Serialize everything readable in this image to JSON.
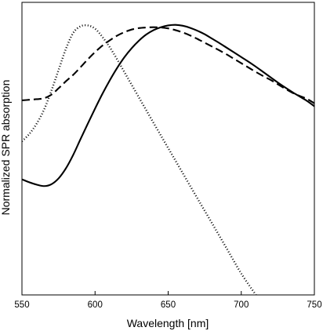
{
  "chart_data": {
    "type": "line",
    "title": "",
    "xlabel": "Wavelength [nm]",
    "ylabel": "Normalized SPR absorption",
    "xlim": [
      550,
      750
    ],
    "ylim": [
      0,
      1.0
    ],
    "x_ticks": [
      550,
      600,
      650,
      700,
      750
    ],
    "y_ticks_shown": false,
    "grid": false,
    "legend": "none",
    "series": [
      {
        "line_style": "solid",
        "color": "#000000",
        "x": [
          550,
          555,
          560,
          565,
          570,
          575,
          580,
          585,
          590,
          595,
          600,
          605,
          610,
          615,
          620,
          625,
          630,
          635,
          640,
          645,
          650,
          655,
          660,
          665,
          670,
          675,
          680,
          685,
          690,
          695,
          700,
          705,
          710,
          715,
          720,
          725,
          730,
          735,
          740,
          745,
          750
        ],
        "y": [
          0.395,
          0.385,
          0.377,
          0.372,
          0.378,
          0.398,
          0.432,
          0.478,
          0.532,
          0.585,
          0.637,
          0.687,
          0.733,
          0.775,
          0.812,
          0.843,
          0.869,
          0.89,
          0.905,
          0.915,
          0.921,
          0.923,
          0.92,
          0.913,
          0.903,
          0.891,
          0.876,
          0.861,
          0.845,
          0.829,
          0.813,
          0.797,
          0.78,
          0.762,
          0.744,
          0.726,
          0.709,
          0.693,
          0.678,
          0.663,
          0.645
        ]
      },
      {
        "line_style": "dashed",
        "color": "#000000",
        "x": [
          550,
          555,
          560,
          565,
          570,
          575,
          580,
          585,
          590,
          595,
          600,
          605,
          610,
          615,
          620,
          625,
          630,
          635,
          640,
          645,
          650,
          655,
          660,
          665,
          670,
          675,
          680,
          685,
          690,
          695,
          700,
          705,
          710,
          715,
          720,
          725,
          730,
          735,
          740,
          745,
          750
        ],
        "y": [
          0.665,
          0.667,
          0.669,
          0.672,
          0.684,
          0.706,
          0.73,
          0.752,
          0.778,
          0.805,
          0.83,
          0.852,
          0.87,
          0.886,
          0.898,
          0.907,
          0.912,
          0.914,
          0.915,
          0.914,
          0.911,
          0.905,
          0.897,
          0.887,
          0.875,
          0.862,
          0.849,
          0.836,
          0.822,
          0.807,
          0.792,
          0.777,
          0.762,
          0.748,
          0.735,
          0.72,
          0.705,
          0.691,
          0.68,
          0.67,
          0.655
        ]
      },
      {
        "line_style": "dotted",
        "color": "#000000",
        "x": [
          550,
          555,
          560,
          565,
          570,
          575,
          580,
          585,
          590,
          595,
          600,
          605,
          610,
          615,
          620,
          630,
          640,
          650,
          660,
          670,
          680,
          690,
          700,
          710
        ],
        "y": [
          0.525,
          0.55,
          0.585,
          0.632,
          0.696,
          0.768,
          0.84,
          0.895,
          0.918,
          0.921,
          0.91,
          0.882,
          0.847,
          0.806,
          0.762,
          0.675,
          0.588,
          0.502,
          0.416,
          0.33,
          0.245,
          0.159,
          0.073,
          0.0
        ]
      }
    ]
  }
}
